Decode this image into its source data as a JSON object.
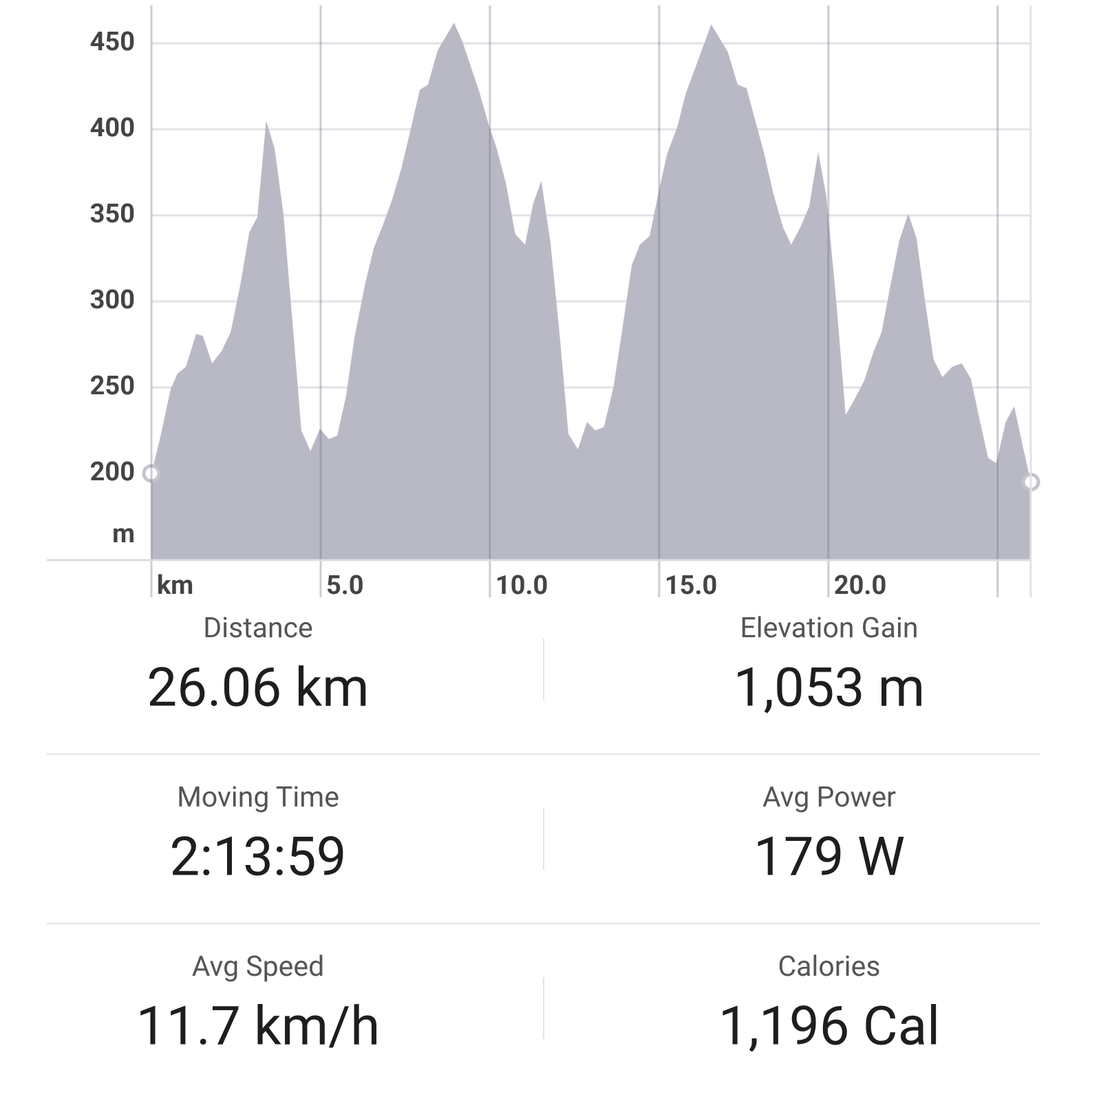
{
  "chart_data": {
    "type": "area",
    "color": "#b9b9c6",
    "grid": true,
    "y_unit": "m",
    "x": [
      0,
      0.24,
      0.57,
      0.77,
      1.02,
      1.32,
      1.52,
      1.79,
      2.07,
      2.34,
      2.64,
      2.89,
      3.13,
      3.39,
      3.64,
      3.9,
      4.19,
      4.43,
      4.7,
      4.98,
      5.24,
      5.49,
      5.75,
      6.0,
      6.3,
      6.57,
      6.85,
      7.11,
      7.38,
      7.66,
      7.93,
      8.17,
      8.46,
      8.94,
      9.19,
      9.7,
      9.96,
      10.2,
      10.47,
      10.75,
      11.04,
      11.28,
      11.52,
      11.79,
      12.05,
      12.32,
      12.6,
      12.87,
      13.11,
      13.37,
      13.66,
      13.92,
      14.19,
      14.43,
      14.72,
      15.0,
      15.24,
      15.53,
      15.79,
      16.54,
      17.03,
      17.32,
      17.58,
      18.09,
      18.37,
      18.66,
      18.9,
      19.17,
      19.43,
      19.7,
      19.94,
      20.22,
      20.51,
      20.77,
      21.06,
      21.32,
      21.57,
      21.83,
      22.09,
      22.36,
      22.6,
      22.85,
      23.11,
      23.37,
      23.66,
      23.94,
      24.21,
      24.47,
      24.72,
      24.96,
      25.24,
      25.49,
      25.73,
      25.98
    ],
    "values": [
      200,
      219,
      249,
      258,
      262,
      281,
      280,
      264,
      271,
      282,
      311,
      340,
      349,
      405,
      389,
      351,
      283,
      225,
      213,
      226,
      220,
      222,
      245,
      279,
      309,
      331,
      345,
      359,
      377,
      400,
      423,
      426,
      446,
      462,
      451,
      421,
      403,
      389,
      369,
      339,
      333,
      357,
      370,
      334,
      283,
      223,
      214,
      230,
      225,
      227,
      251,
      285,
      321,
      333,
      338,
      365,
      386,
      401,
      421,
      461,
      445,
      426,
      424,
      387,
      363,
      343,
      333,
      343,
      355,
      387,
      361,
      303,
      234,
      243,
      254,
      270,
      282,
      309,
      335,
      351,
      337,
      301,
      266,
      256,
      262,
      264,
      255,
      231,
      209,
      206,
      230,
      239,
      217,
      195
    ],
    "xlim": [
      0,
      25.98
    ],
    "ylim": [
      150,
      470
    ],
    "xticks": [
      {
        "value": 0,
        "label": "km"
      },
      {
        "value": 5,
        "label": "5.0"
      },
      {
        "value": 10,
        "label": "10.0"
      },
      {
        "value": 15,
        "label": "15.0"
      },
      {
        "value": 20,
        "label": "20.0"
      },
      {
        "value": 25,
        "label": null
      }
    ],
    "yticks": [
      200,
      250,
      300,
      350,
      400,
      450
    ]
  },
  "stats": [
    {
      "label": "Distance",
      "value": "26.06 km"
    },
    {
      "label": "Elevation Gain",
      "value": "1,053 m"
    },
    {
      "label": "Moving Time",
      "value": "2:13:59"
    },
    {
      "label": "Avg Power",
      "value": "179 W"
    },
    {
      "label": "Avg Speed",
      "value": "11.7 km/h"
    },
    {
      "label": "Calories",
      "value": "1,196 Cal"
    }
  ]
}
